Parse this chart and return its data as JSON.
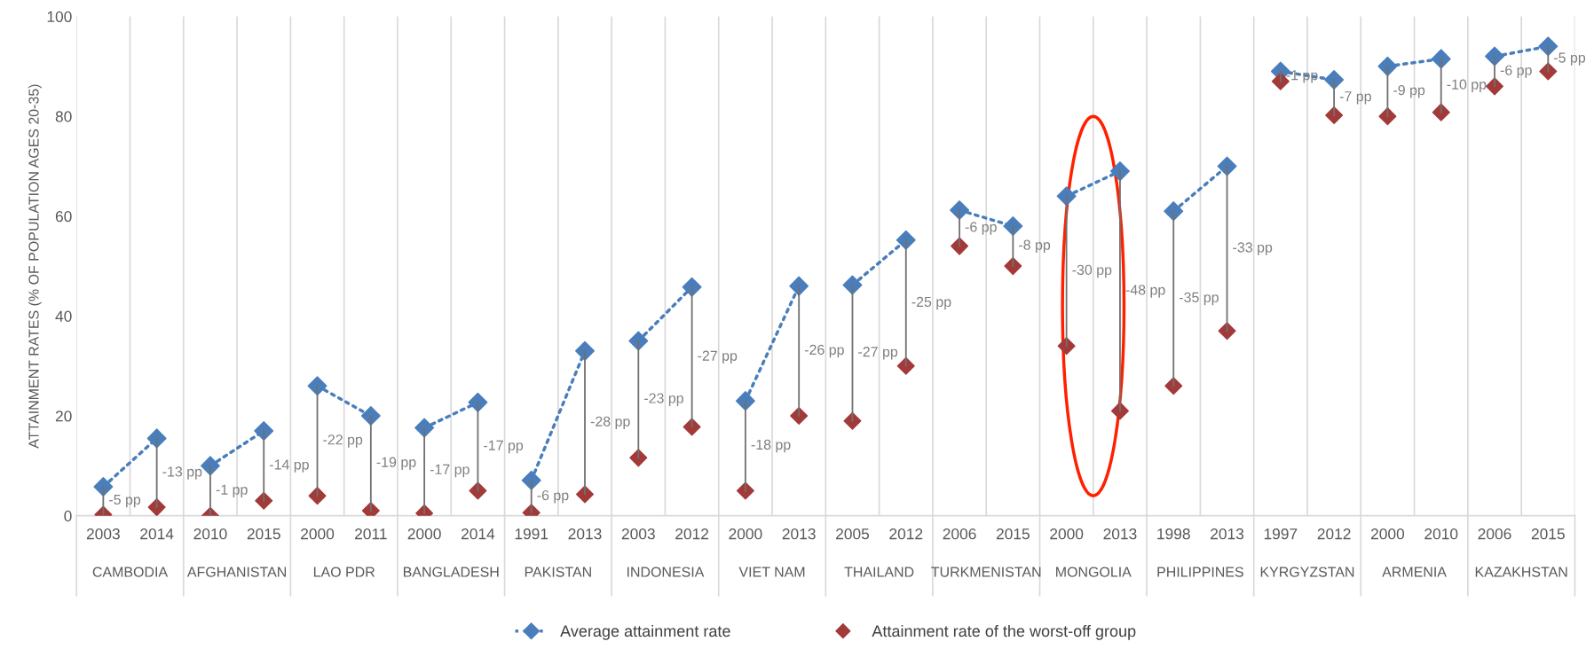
{
  "chart_data": {
    "type": "scatter",
    "ylabel": "ATTAINMENT RATES (% OF POPULATION AGES 20-35)",
    "categories": [
      "2003",
      "2014",
      "2010",
      "2015",
      "2000",
      "2011",
      "2000",
      "2014",
      "1991",
      "2013",
      "2003",
      "2012",
      "2000",
      "2013",
      "2005",
      "2012",
      "2006",
      "2015",
      "2000",
      "2013",
      "1998",
      "2013",
      "1997",
      "2012",
      "2000",
      "2010",
      "2006",
      "2015"
    ],
    "annotations": [
      "CAMBODIA",
      "AFGHANISTAN",
      "LAO PDR",
      "BANGLADESH",
      "PAKISTAN",
      "INDONESIA",
      "VIET NAM",
      "THAILAND",
      "TURKMENISTAN",
      "MONGOLIA",
      "PHILIPPINES",
      "KYRGYZSTAN",
      "ARMENIA",
      "KAZAKHSTAN",
      "-5 pp",
      "-13 pp",
      "-1 pp",
      "-14 pp",
      "-22 pp",
      "-19 pp",
      "-17 pp",
      "-17 pp",
      "-6 pp",
      "-28 pp",
      "-23 pp",
      "-27 pp",
      "-18 pp",
      "-26 pp",
      "-27 pp",
      "-25 pp",
      "-6 pp",
      "-8 pp",
      "-30 pp",
      "-48 pp",
      "-35 pp",
      "-33 pp",
      "-1 pp",
      "-7 pp",
      "-9 pp",
      "-10 pp",
      "-6 pp",
      "-5 pp"
    ],
    "series": [
      {
        "name": "Average attainment rate",
        "type": "line",
        "color": "#4a7ebb",
        "marker": "diamond",
        "line_style": "dotted",
        "values": [
          5.8,
          15.5,
          10,
          17,
          26,
          20,
          17.6,
          22.7,
          7.1,
          33,
          35,
          45.8,
          23,
          46,
          46.2,
          55.2,
          61.2,
          58,
          64,
          69,
          61,
          70,
          89,
          87.3,
          90,
          91.5,
          92,
          94
        ],
        "errors": [
          [
            0.2,
            5.8
          ],
          [
            1.7,
            15.5
          ],
          [
            0,
            10
          ],
          [
            3,
            17
          ],
          [
            4,
            26
          ],
          [
            1,
            20
          ],
          [
            0.5,
            17.6
          ],
          [
            5,
            22.7
          ],
          [
            0.6,
            7.1
          ],
          [
            4.3,
            33
          ],
          [
            11.6,
            35
          ],
          [
            17.8,
            45.8
          ],
          [
            5,
            23
          ],
          [
            20,
            46
          ],
          [
            19,
            46.2
          ],
          [
            30,
            55.2
          ],
          [
            54,
            61.2
          ],
          [
            50,
            58
          ],
          [
            34,
            64
          ],
          [
            21,
            69
          ],
          [
            26,
            61
          ],
          [
            37,
            70
          ],
          [
            87,
            89
          ],
          [
            80.2,
            87.3
          ],
          [
            80,
            90
          ],
          [
            80.8,
            91.5
          ],
          [
            86,
            92
          ],
          [
            89,
            94
          ]
        ]
      },
      {
        "name": "Attainment rate of the worst-off group",
        "type": "scatter",
        "color": "#a33a3a",
        "marker": "diamond",
        "values": [
          0.2,
          1.7,
          0,
          3,
          4,
          1,
          0.5,
          5,
          0.6,
          4.3,
          11.6,
          17.8,
          5,
          20,
          19,
          30,
          54,
          50,
          34,
          21,
          26,
          37,
          87,
          80.2,
          80,
          80.8,
          86,
          89
        ]
      }
    ],
    "ylim": [
      0,
      100
    ],
    "yticks": [
      0,
      20,
      40,
      60,
      80,
      100
    ],
    "grid": "x",
    "legend": "bottom"
  }
}
